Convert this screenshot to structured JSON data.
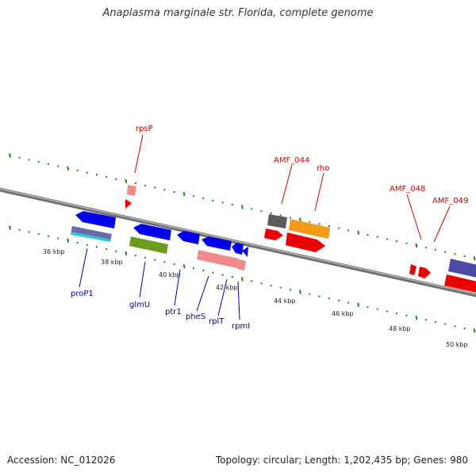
{
  "title": "Anaplasma marginale str. Florida, complete genome",
  "footer": {
    "accession": "Accession: NC_012026",
    "stats": "Topology: circular; Length: 1,202,435 bp; Genes: 980"
  },
  "colors": {
    "forward_label": "#cc0000",
    "reverse_label": "#000099",
    "tick": "#1a8a1a",
    "backbone": "#888888"
  },
  "ticks": [
    "36 kbp",
    "38 kbp",
    "40 kbp",
    "42 kbp",
    "44 kbp",
    "46 kbp",
    "48 kbp",
    "50 kbp"
  ],
  "forward_labels": [
    "rpsP",
    "AMF_044",
    "rho",
    "AMF_048",
    "AMF_049"
  ],
  "reverse_labels": [
    "proP1",
    "glmU",
    "ptr1",
    "pheS",
    "rplT",
    "rpmI"
  ]
}
